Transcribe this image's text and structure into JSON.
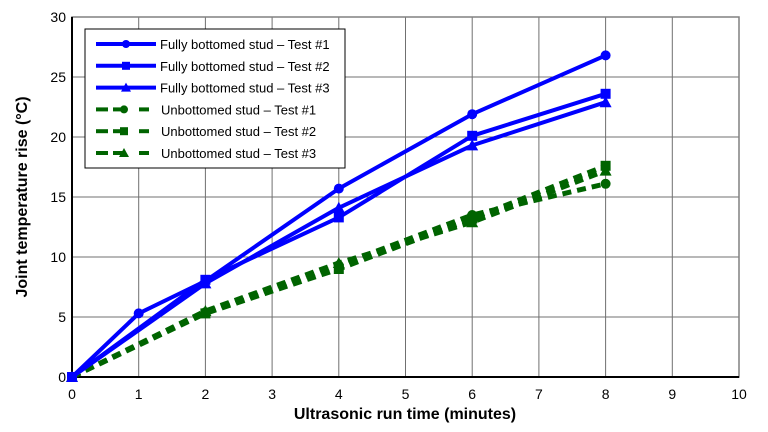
{
  "chart_data": {
    "type": "line",
    "title": "",
    "xlabel": "Ultrasonic run time (minutes)",
    "ylabel": "Joint temperature rise (°C)",
    "xlim": [
      0,
      10
    ],
    "ylim": [
      0,
      30
    ],
    "xticks": [
      0,
      1,
      2,
      3,
      4,
      5,
      6,
      7,
      8,
      9,
      10
    ],
    "yticks": [
      0,
      5,
      10,
      15,
      20,
      25,
      30
    ],
    "grid": true,
    "legend_position": "upper-left-inside",
    "series": [
      {
        "name": "Fully bottomed stud – Test #1",
        "color": "#0000ff",
        "style": "solid",
        "marker": "circle",
        "x": [
          0,
          1,
          2,
          4,
          6,
          8
        ],
        "y": [
          0,
          5.3,
          8.0,
          15.7,
          21.9,
          26.8
        ]
      },
      {
        "name": "Fully bottomed stud – Test #2",
        "color": "#0000ff",
        "style": "solid",
        "marker": "square",
        "x": [
          0,
          2,
          4,
          6,
          8
        ],
        "y": [
          0,
          8.1,
          13.3,
          20.1,
          23.6
        ]
      },
      {
        "name": "Fully bottomed stud – Test #3",
        "color": "#0000ff",
        "style": "solid",
        "marker": "triangle",
        "x": [
          0,
          2,
          4,
          6,
          8
        ],
        "y": [
          0,
          7.8,
          14.1,
          19.3,
          22.9
        ]
      },
      {
        "name": "Unbottomed stud – Test #1",
        "color": "#006400",
        "style": "dashed",
        "marker": "circle",
        "x": [
          0,
          2,
          4,
          6,
          8
        ],
        "y": [
          0,
          5.4,
          9.3,
          13.5,
          16.1
        ]
      },
      {
        "name": "Unbottomed stud – Test #2",
        "color": "#006400",
        "style": "dashed",
        "marker": "square",
        "x": [
          0,
          2,
          4,
          6,
          8
        ],
        "y": [
          0,
          5.3,
          9.0,
          13.2,
          17.6
        ]
      },
      {
        "name": "Unbottomed stud – Test #3",
        "color": "#006400",
        "style": "dashed",
        "marker": "triangle",
        "x": [
          0,
          2,
          4,
          6,
          8
        ],
        "y": [
          0,
          5.5,
          9.5,
          12.9,
          17.2
        ]
      }
    ]
  }
}
